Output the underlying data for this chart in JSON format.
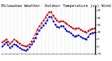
{
  "title": "Milwaukee Weather  Outdoor Temperature (vs) Wind Chill (Last 24 Hours)",
  "temp": [
    3,
    5,
    2,
    5,
    3,
    1,
    0,
    2,
    7,
    13,
    17,
    21,
    25,
    20,
    17,
    18,
    16,
    14,
    12,
    13,
    11,
    10,
    12,
    13
  ],
  "wind_chill": [
    0,
    3,
    -1,
    2,
    0,
    -2,
    -3,
    0,
    4,
    10,
    14,
    17,
    22,
    16,
    13,
    15,
    11,
    10,
    7,
    8,
    6,
    5,
    9,
    10
  ],
  "temp_color": "#cc0000",
  "wind_chill_color": "#0000cc",
  "background_color": "#ffffff",
  "ylim": [
    -5,
    28
  ],
  "yticks": [
    25,
    20,
    15,
    10,
    5,
    0,
    -5
  ],
  "n_points": 48,
  "grid_color": "#888888",
  "title_fontsize": 4.0,
  "tick_fontsize": 3.2,
  "line_width": 0.7,
  "marker_size": 1.8
}
